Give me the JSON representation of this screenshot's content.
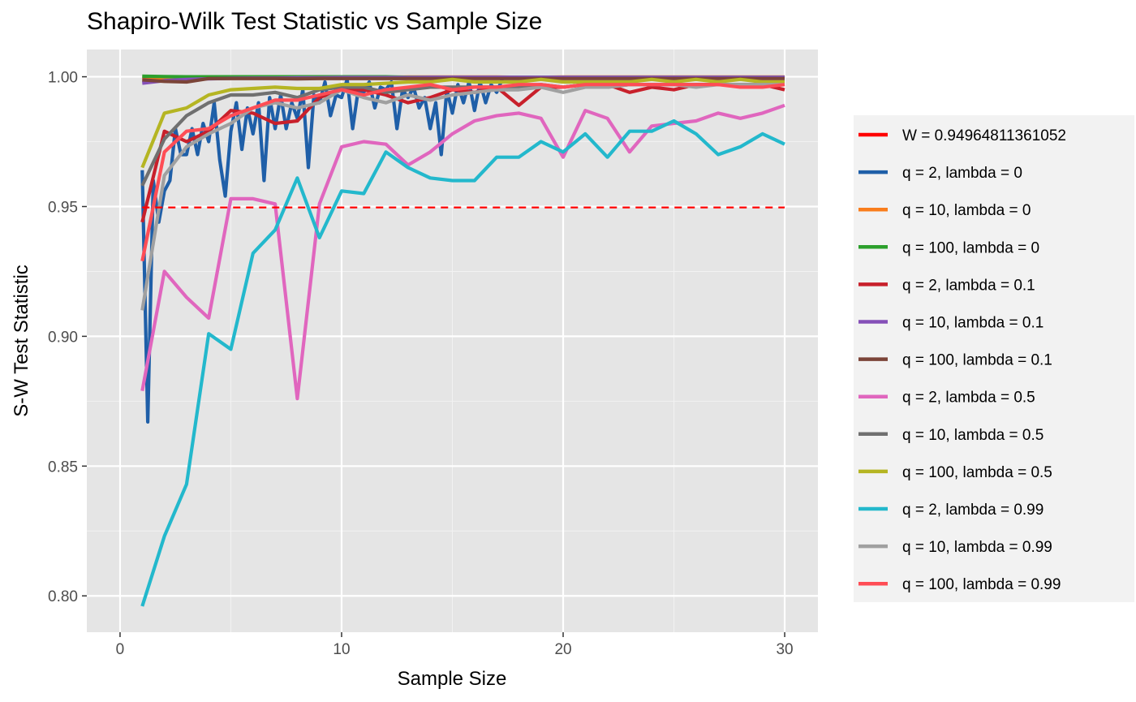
{
  "chart_data": {
    "type": "line",
    "title": "Shapiro-Wilk Test Statistic vs Sample Size",
    "xlabel": "Sample Size",
    "ylabel": "S-W Test Statistic",
    "xlim": [
      -1.5,
      31.5
    ],
    "ylim": [
      0.786,
      1.0105
    ],
    "x_ticks": [
      0,
      10,
      20,
      30
    ],
    "x_tick_labels": [
      "0",
      "10",
      "20",
      "30"
    ],
    "y_ticks": [
      0.8,
      0.85,
      0.9,
      0.95,
      1.0
    ],
    "y_tick_labels": [
      "0.80",
      "0.85",
      "0.90",
      "0.95",
      "1.00"
    ],
    "grid": true,
    "legend_position": "right",
    "reference_line": {
      "name": "W =  0.94964811361052",
      "value": 0.94964811361052,
      "x_range": [
        1,
        30
      ],
      "color": "#ff0000",
      "style": "dashed"
    },
    "series": [
      {
        "name": "q = 2, lambda = 0",
        "color": "#1f5fa8",
        "x_step": 0.25,
        "values": [
          0.964,
          0.867,
          0.96,
          0.944,
          0.956,
          0.96,
          0.98,
          0.97,
          0.97,
          0.98,
          0.97,
          0.982,
          0.975,
          0.99,
          0.968,
          0.954,
          0.979,
          0.99,
          0.972,
          0.988,
          0.978,
          0.99,
          0.96,
          0.992,
          0.98,
          0.993,
          0.98,
          0.99,
          0.984,
          0.995,
          0.965,
          0.993,
          0.99,
          0.998,
          0.985,
          0.993,
          0.992,
          0.999,
          0.98,
          0.995,
          0.994,
          0.998,
          0.988,
          0.996,
          0.995,
          0.998,
          0.98,
          0.995,
          0.992,
          0.996,
          0.988,
          0.992,
          0.98,
          0.99,
          0.97,
          0.995,
          0.986,
          0.997,
          0.99,
          0.998,
          0.987,
          0.998,
          0.99,
          0.997,
          0.994,
          0.999
        ]
      },
      {
        "name": "q = 10, lambda = 0",
        "color": "#f97d1c",
        "x": [
          1,
          2,
          3,
          4,
          5,
          6,
          7,
          8,
          9,
          10,
          11,
          12,
          13,
          14,
          15,
          16,
          17,
          18,
          19,
          20,
          21,
          22,
          23,
          24,
          25,
          26,
          27,
          28,
          29,
          30
        ],
        "values": [
          0.9995,
          0.9996,
          0.9997,
          0.9997,
          0.9998,
          0.9998,
          0.9998,
          0.9998,
          0.9998,
          0.9999,
          0.9998,
          0.9998,
          0.9999,
          0.9999,
          0.9999,
          0.9999,
          0.9999,
          0.9998,
          0.9998,
          0.9999,
          0.9999,
          0.9999,
          0.9999,
          0.9999,
          0.9999,
          0.9999,
          0.9999,
          0.9999,
          0.9999,
          0.9999
        ]
      },
      {
        "name": "q = 100, lambda = 0",
        "color": "#2ca02c",
        "x": [
          1,
          2,
          3,
          4,
          5,
          6,
          7,
          8,
          9,
          10,
          11,
          12,
          13,
          14,
          15,
          16,
          17,
          18,
          19,
          20,
          21,
          22,
          23,
          24,
          25,
          26,
          27,
          28,
          29,
          30
        ],
        "values": [
          1.0002,
          1.0001,
          1.0,
          1.0,
          1.0,
          1.0,
          1.0,
          1.0,
          1.0,
          1.0,
          1.0,
          1.0,
          0.9998,
          0.9998,
          0.9998,
          0.9998,
          0.9998,
          0.9998,
          0.9998,
          0.9998,
          0.9998,
          0.9998,
          0.9998,
          0.9998,
          0.9998,
          0.9998,
          0.9998,
          0.9998,
          0.9998,
          0.9998
        ]
      },
      {
        "name": "q = 2, lambda = 0.1",
        "color": "#c8202b",
        "x": [
          1,
          2,
          3,
          4,
          5,
          6,
          7,
          8,
          9,
          10,
          11,
          12,
          13,
          14,
          15,
          16,
          17,
          18,
          19,
          20,
          21,
          22,
          23,
          24,
          25,
          26,
          27,
          28,
          29,
          30
        ],
        "values": [
          0.944,
          0.979,
          0.975,
          0.979,
          0.987,
          0.986,
          0.982,
          0.983,
          0.992,
          0.995,
          0.995,
          0.993,
          0.99,
          0.992,
          0.995,
          0.994,
          0.996,
          0.989,
          0.996,
          0.996,
          0.997,
          0.997,
          0.994,
          0.996,
          0.995,
          0.997,
          0.997,
          0.997,
          0.997,
          0.995
        ]
      },
      {
        "name": "q = 10, lambda = 0.1",
        "color": "#8550b8",
        "x": [
          1,
          2,
          3,
          4,
          5,
          6,
          7,
          8,
          9,
          10,
          11,
          12,
          13,
          14,
          15,
          16,
          17,
          18,
          19,
          20,
          21,
          22,
          23,
          24,
          25,
          26,
          27,
          28,
          29,
          30
        ],
        "values": [
          0.9975,
          0.9985,
          0.999,
          0.9992,
          0.9994,
          0.9995,
          0.9995,
          0.9996,
          0.9996,
          0.9997,
          0.9997,
          0.9997,
          0.9997,
          0.9998,
          0.9998,
          0.9998,
          0.9998,
          0.9998,
          0.9998,
          0.9998,
          0.9998,
          0.9998,
          0.9998,
          0.9998,
          0.9998,
          0.9998,
          0.9998,
          0.9998,
          0.9998,
          0.9998
        ]
      },
      {
        "name": "q = 100, lambda = 0.1",
        "color": "#7b4438",
        "x": [
          1,
          2,
          3,
          4,
          5,
          6,
          7,
          8,
          9,
          10,
          11,
          12,
          13,
          14,
          15,
          16,
          17,
          18,
          19,
          20,
          21,
          22,
          23,
          24,
          25,
          26,
          27,
          28,
          29,
          30
        ],
        "values": [
          0.9988,
          0.9982,
          0.998,
          0.9993,
          0.9993,
          0.9993,
          0.9993,
          0.9992,
          0.9993,
          0.9993,
          0.9993,
          0.9993,
          0.9993,
          0.9993,
          0.9993,
          0.9993,
          0.9993,
          0.9993,
          0.9993,
          0.9993,
          0.9993,
          0.9993,
          0.9993,
          0.9993,
          0.9993,
          0.9993,
          0.9993,
          0.9993,
          0.9993,
          0.9993
        ]
      },
      {
        "name": "q = 2, lambda = 0.5",
        "color": "#e066be",
        "x": [
          1,
          2,
          3,
          4,
          5,
          6,
          7,
          8,
          9,
          10,
          11,
          12,
          13,
          14,
          15,
          16,
          17,
          18,
          19,
          20,
          21,
          22,
          23,
          24,
          25,
          26,
          27,
          28,
          29,
          30
        ],
        "values": [
          0.879,
          0.925,
          0.915,
          0.907,
          0.953,
          0.953,
          0.951,
          0.876,
          0.951,
          0.973,
          0.975,
          0.974,
          0.966,
          0.971,
          0.978,
          0.983,
          0.985,
          0.986,
          0.984,
          0.969,
          0.987,
          0.984,
          0.971,
          0.981,
          0.982,
          0.983,
          0.986,
          0.984,
          0.986,
          0.989
        ]
      },
      {
        "name": "q = 10, lambda = 0.5",
        "color": "#707070",
        "x": [
          1,
          2,
          3,
          4,
          5,
          6,
          7,
          8,
          9,
          10,
          11,
          12,
          13,
          14,
          15,
          16,
          17,
          18,
          19,
          20,
          21,
          22,
          23,
          24,
          25,
          26,
          27,
          28,
          29,
          30
        ],
        "values": [
          0.958,
          0.976,
          0.985,
          0.99,
          0.993,
          0.993,
          0.994,
          0.992,
          0.995,
          0.996,
          0.996,
          0.994,
          0.995,
          0.996,
          0.996,
          0.996,
          0.996,
          0.996,
          0.997,
          0.996,
          0.997,
          0.996,
          0.997,
          0.997,
          0.997,
          0.997,
          0.997,
          0.997,
          0.997,
          0.997
        ]
      },
      {
        "name": "q = 100, lambda = 0.5",
        "color": "#b5b523",
        "x": [
          1,
          2,
          3,
          4,
          5,
          6,
          7,
          8,
          9,
          10,
          11,
          12,
          13,
          14,
          15,
          16,
          17,
          18,
          19,
          20,
          21,
          22,
          23,
          24,
          25,
          26,
          27,
          28,
          29,
          30
        ],
        "values": [
          0.965,
          0.986,
          0.988,
          0.993,
          0.995,
          0.9955,
          0.996,
          0.9955,
          0.9955,
          0.997,
          0.997,
          0.9975,
          0.998,
          0.998,
          0.999,
          0.998,
          0.998,
          0.998,
          0.999,
          0.998,
          0.998,
          0.998,
          0.998,
          0.999,
          0.998,
          0.999,
          0.998,
          0.999,
          0.998,
          0.998
        ]
      },
      {
        "name": "q = 2, lambda = 0.99",
        "color": "#23b8cc",
        "x": [
          1,
          2,
          3,
          4,
          5,
          6,
          7,
          8,
          9,
          10,
          11,
          12,
          13,
          14,
          15,
          16,
          17,
          18,
          19,
          20,
          21,
          22,
          23,
          24,
          25,
          26,
          27,
          28,
          29,
          30
        ],
        "values": [
          0.796,
          0.823,
          0.843,
          0.901,
          0.895,
          0.932,
          0.941,
          0.961,
          0.938,
          0.956,
          0.955,
          0.971,
          0.965,
          0.961,
          0.96,
          0.96,
          0.969,
          0.969,
          0.975,
          0.971,
          0.978,
          0.969,
          0.979,
          0.979,
          0.983,
          0.978,
          0.97,
          0.973,
          0.978,
          0.974
        ]
      },
      {
        "name": "q = 10, lambda = 0.99",
        "color": "#a0a0a0",
        "x": [
          1,
          2,
          3,
          4,
          5,
          6,
          7,
          8,
          9,
          10,
          11,
          12,
          13,
          14,
          15,
          16,
          17,
          18,
          19,
          20,
          21,
          22,
          23,
          24,
          25,
          26,
          27,
          28,
          29,
          30
        ],
        "values": [
          0.91,
          0.962,
          0.973,
          0.978,
          0.982,
          0.988,
          0.99,
          0.988,
          0.99,
          0.995,
          0.992,
          0.99,
          0.993,
          0.991,
          0.993,
          0.994,
          0.995,
          0.995,
          0.996,
          0.994,
          0.996,
          0.996,
          0.997,
          0.997,
          0.997,
          0.996,
          0.997,
          0.997,
          0.997,
          0.997
        ]
      },
      {
        "name": "q = 100, lambda = 0.99",
        "color": "#ff4d55",
        "x": [
          1,
          2,
          3,
          4,
          5,
          6,
          7,
          8,
          9,
          10,
          11,
          12,
          13,
          14,
          15,
          16,
          17,
          18,
          19,
          20,
          21,
          22,
          23,
          24,
          25,
          26,
          27,
          28,
          29,
          30
        ],
        "values": [
          0.929,
          0.971,
          0.979,
          0.98,
          0.985,
          0.988,
          0.991,
          0.991,
          0.993,
          0.995,
          0.993,
          0.995,
          0.996,
          0.997,
          0.995,
          0.996,
          0.996,
          0.997,
          0.997,
          0.996,
          0.997,
          0.997,
          0.997,
          0.997,
          0.997,
          0.997,
          0.997,
          0.996,
          0.996,
          0.997
        ]
      }
    ]
  }
}
